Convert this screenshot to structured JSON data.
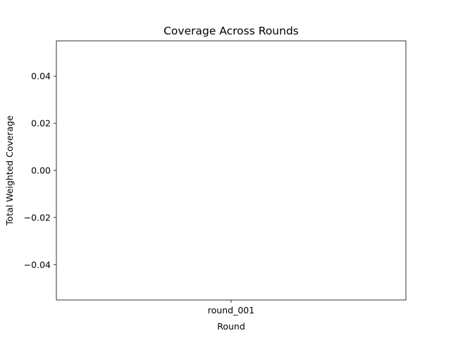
{
  "chart_data": {
    "type": "bar",
    "title": "Coverage Across Rounds",
    "xlabel": "Round",
    "ylabel": "Total Weighted Coverage",
    "categories": [
      "round_001"
    ],
    "values": [
      0
    ],
    "ylim": [
      -0.055,
      0.055
    ],
    "yticks": [
      0.04,
      0.02,
      0.0,
      -0.02,
      -0.04
    ],
    "ytick_labels": [
      "0.04",
      "0.02",
      "0.00",
      "−0.02",
      "−0.04"
    ],
    "grid": false,
    "legend": "none",
    "colors": {
      "bar": "#1f77b4",
      "axes": "#000000",
      "background": "#ffffff"
    }
  }
}
